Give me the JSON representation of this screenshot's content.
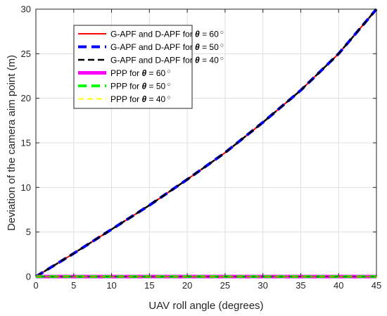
{
  "chart_data": {
    "type": "line",
    "xlabel": "UAV roll angle (degrees)",
    "ylabel": "Deviation of the camera aim point (m)",
    "xlim": [
      0,
      45
    ],
    "ylim": [
      0,
      30
    ],
    "x_ticks": [
      0,
      5,
      10,
      15,
      20,
      25,
      30,
      35,
      40,
      45
    ],
    "y_ticks": [
      0,
      5,
      10,
      15,
      20,
      25,
      30
    ],
    "grid": true,
    "legend_position": "top-left",
    "x": [
      0,
      5,
      10,
      15,
      20,
      25,
      30,
      35,
      40,
      45
    ],
    "series": [
      {
        "name_prefix": "G-APF and D-APF for ",
        "theta": "60",
        "color": "#ff0000",
        "style": "solid",
        "width": 2,
        "values": [
          0,
          2.6,
          5.3,
          8.0,
          10.9,
          13.9,
          17.3,
          20.9,
          25.0,
          30.0
        ]
      },
      {
        "name_prefix": "G-APF and D-APF for ",
        "theta": "50",
        "color": "#0000ff",
        "style": "dashed",
        "width": 4,
        "values": [
          0,
          2.6,
          5.3,
          8.0,
          10.9,
          13.9,
          17.3,
          20.9,
          25.0,
          30.0
        ]
      },
      {
        "name_prefix": "G-APF and D-APF for ",
        "theta": "40",
        "color": "#000000",
        "style": "dashed",
        "width": 2.5,
        "values": [
          0,
          2.6,
          5.3,
          8.0,
          10.9,
          13.9,
          17.3,
          20.9,
          25.0,
          30.0
        ]
      },
      {
        "name_prefix": "PPP for ",
        "theta": "60",
        "color": "#ff00ff",
        "style": "solid",
        "width": 5,
        "values": [
          0,
          0,
          0,
          0,
          0,
          0,
          0,
          0,
          0,
          0
        ]
      },
      {
        "name_prefix": "PPP for ",
        "theta": "50",
        "color": "#00ff00",
        "style": "dashed",
        "width": 4,
        "values": [
          0,
          0,
          0,
          0,
          0,
          0,
          0,
          0,
          0,
          0
        ]
      },
      {
        "name_prefix": "PPP for ",
        "theta": "40",
        "color": "#ffff00",
        "style": "dashed",
        "width": 2,
        "values": [
          0,
          0,
          0,
          0,
          0,
          0,
          0,
          0,
          0,
          0
        ]
      }
    ]
  }
}
